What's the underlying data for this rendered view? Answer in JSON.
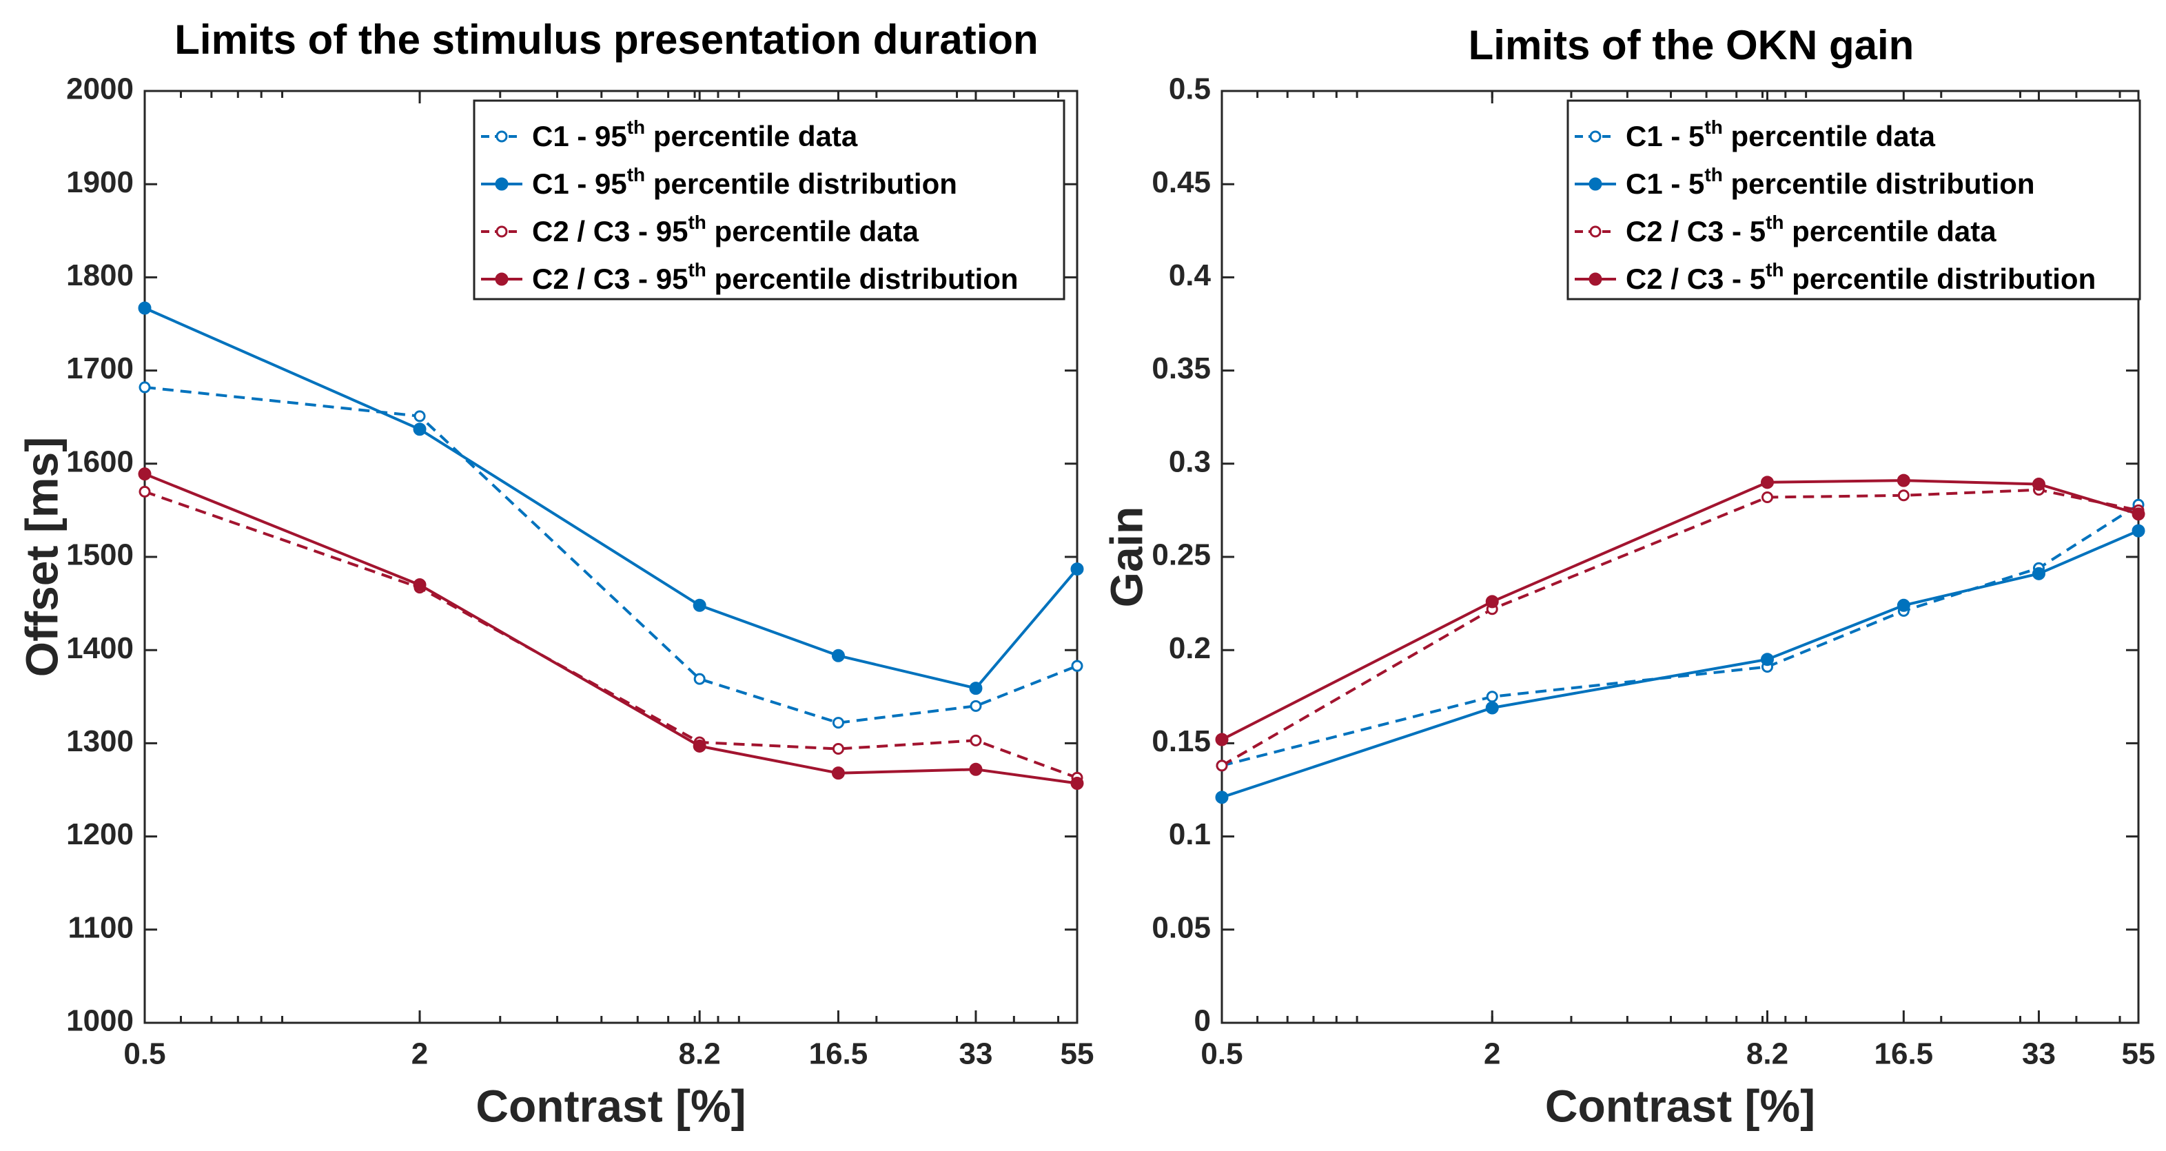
{
  "chart_data": [
    {
      "type": "line",
      "title": "Limits of the stimulus presentation duration",
      "xlabel": "Contrast [%]",
      "ylabel": "Offset [ms]",
      "xscale": "log",
      "x": [
        0.5,
        2,
        8.2,
        16.5,
        33,
        55
      ],
      "xticklabels": [
        "0.5",
        "2",
        "8.2",
        "16.5",
        "33",
        "55"
      ],
      "xlim": [
        0.5,
        55
      ],
      "ylim": [
        1000,
        2000
      ],
      "yticks": [
        1000,
        1100,
        1200,
        1300,
        1400,
        1500,
        1600,
        1700,
        1800,
        1900,
        2000
      ],
      "yticklabels": [
        "1000",
        "1100",
        "1200",
        "1300",
        "1400",
        "1500",
        "1600",
        "1700",
        "1800",
        "1900",
        "2000"
      ],
      "legend_position": "top-right",
      "series": [
        {
          "name": "C1 - 95th percentile data",
          "label_pre": "C1 - 95",
          "label_sup": "th",
          "label_post": " percentile data",
          "color": "#0072BD",
          "style": "dashed",
          "marker": "open-circle",
          "values": [
            1682,
            1651,
            1369,
            1322,
            1340,
            1383
          ]
        },
        {
          "name": "C1 - 95th percentile distribution",
          "label_pre": "C1 - 95",
          "label_sup": "th",
          "label_post": " percentile distribution",
          "color": "#0072BD",
          "style": "solid",
          "marker": "filled-circle",
          "values": [
            1767,
            1637,
            1448,
            1394,
            1359,
            1487
          ]
        },
        {
          "name": "C2 / C3 - 95th percentile data",
          "label_pre": "C2 / C3 - 95",
          "label_sup": "th",
          "label_post": " percentile data",
          "color": "#A2142F",
          "style": "dashed",
          "marker": "open-circle",
          "values": [
            1570,
            1467,
            1301,
            1294,
            1303,
            1263
          ]
        },
        {
          "name": "C2 / C3 - 95th percentile distribution",
          "label_pre": "C2 / C3 - 95",
          "label_sup": "th",
          "label_post": " percentile distribution",
          "color": "#A2142F",
          "style": "solid",
          "marker": "filled-circle",
          "values": [
            1589,
            1470,
            1297,
            1268,
            1272,
            1257
          ]
        }
      ]
    },
    {
      "type": "line",
      "title": "Limits of the OKN gain",
      "xlabel": "Contrast [%]",
      "ylabel": "Gain",
      "xscale": "log",
      "x": [
        0.5,
        2,
        8.2,
        16.5,
        33,
        55
      ],
      "xticklabels": [
        "0.5",
        "2",
        "8.2",
        "16.5",
        "33",
        "55"
      ],
      "xlim": [
        0.5,
        55
      ],
      "ylim": [
        0,
        0.5
      ],
      "yticks": [
        0,
        0.05,
        0.1,
        0.15,
        0.2,
        0.25,
        0.3,
        0.35,
        0.4,
        0.45,
        0.5
      ],
      "yticklabels": [
        "0",
        "0.05",
        "0.1",
        "0.15",
        "0.2",
        "0.25",
        "0.3",
        "0.35",
        "0.4",
        "0.45",
        "0.5"
      ],
      "legend_position": "top-right",
      "series": [
        {
          "name": "C1 - 5th percentile data",
          "label_pre": "C1 - 5",
          "label_sup": "th",
          "label_post": " percentile data",
          "color": "#0072BD",
          "style": "dashed",
          "marker": "open-circle",
          "values": [
            0.138,
            0.175,
            0.191,
            0.221,
            0.244,
            0.278
          ]
        },
        {
          "name": "C1 - 5th percentile distribution",
          "label_pre": "C1 - 5",
          "label_sup": "th",
          "label_post": " percentile distribution",
          "color": "#0072BD",
          "style": "solid",
          "marker": "filled-circle",
          "values": [
            0.121,
            0.169,
            0.195,
            0.224,
            0.241,
            0.264
          ]
        },
        {
          "name": "C2 / C3 - 5th percentile data",
          "label_pre": "C2 / C3 - 5",
          "label_sup": "th",
          "label_post": " percentile data",
          "color": "#A2142F",
          "style": "dashed",
          "marker": "open-circle",
          "values": [
            0.138,
            0.222,
            0.282,
            0.283,
            0.286,
            0.275
          ]
        },
        {
          "name": "C2 / C3 - 5th percentile distribution",
          "label_pre": "C2 / C3 - 5",
          "label_sup": "th",
          "label_post": " percentile distribution",
          "color": "#A2142F",
          "style": "solid",
          "marker": "filled-circle",
          "values": [
            0.152,
            0.226,
            0.29,
            0.291,
            0.289,
            0.273
          ]
        }
      ]
    }
  ]
}
